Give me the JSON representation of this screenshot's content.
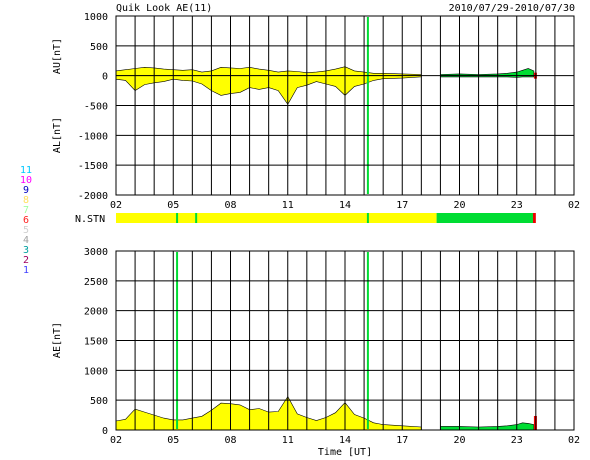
{
  "header": {
    "title": "Quik Look AE(11)",
    "date_range": "2010/07/29-2010/07/30"
  },
  "legend": {
    "items": [
      {
        "label": "11",
        "color": "#00c8ff"
      },
      {
        "label": "10",
        "color": "#ff00ff"
      },
      {
        "label": "9",
        "color": "#0000c0"
      },
      {
        "label": "8",
        "color": "#ffe060"
      },
      {
        "label": "7",
        "color": "#a0ffa0"
      },
      {
        "label": "6",
        "color": "#ff2020"
      },
      {
        "label": "5",
        "color": "#d0d0d0"
      },
      {
        "label": "4",
        "color": "#a0a0a0"
      },
      {
        "label": "3",
        "color": "#00a0a0"
      },
      {
        "label": "2",
        "color": "#a00060"
      },
      {
        "label": "1",
        "color": "#4040ff"
      }
    ]
  },
  "colors": {
    "fill_main": "#ffff00",
    "fill_late": "#00dd33",
    "marker_end": "#ee0000",
    "grid": "#000000"
  },
  "chart_data": [
    {
      "id": "au_al",
      "type": "area",
      "ylabel_top": "AU[nT]",
      "ylabel_bottom": "AL[nT]",
      "ylim": [
        -2000,
        1000
      ],
      "yticks": [
        1000,
        500,
        0,
        -500,
        -1000,
        -1500,
        -2000
      ],
      "x_tick_labels": [
        "02",
        "05",
        "08",
        "11",
        "14",
        "17",
        "20",
        "23",
        "02"
      ],
      "xlim_hours": [
        2,
        26
      ],
      "grid": true,
      "series": [
        {
          "hour": [
            2.0,
            2.5,
            3.0,
            3.5,
            4.0,
            4.5,
            5.0,
            5.5,
            6.0,
            6.5,
            7.0,
            7.5,
            8.0,
            8.5,
            9.0,
            9.5,
            10.0,
            10.5,
            11.0,
            11.5,
            12.0,
            12.5,
            13.0,
            13.5,
            14.0,
            14.5,
            15.0,
            15.5,
            16.0,
            17.0,
            18.0,
            19.0,
            20.0,
            21.0,
            22.0,
            22.5,
            23.0,
            23.3,
            23.6,
            23.9
          ],
          "au": [
            80,
            100,
            120,
            140,
            130,
            110,
            100,
            90,
            100,
            60,
            80,
            140,
            130,
            120,
            140,
            110,
            90,
            60,
            80,
            70,
            50,
            60,
            80,
            110,
            150,
            80,
            60,
            40,
            40,
            30,
            20,
            20,
            30,
            20,
            30,
            40,
            60,
            90,
            120,
            80
          ],
          "al": [
            -60,
            -80,
            -250,
            -150,
            -120,
            -100,
            -60,
            -80,
            -90,
            -140,
            -250,
            -330,
            -300,
            -280,
            -200,
            -230,
            -200,
            -250,
            -480,
            -200,
            -160,
            -100,
            -140,
            -180,
            -330,
            -180,
            -140,
            -80,
            -50,
            -40,
            -20,
            -20,
            -20,
            -20,
            -20,
            -20,
            -30,
            -20,
            -20,
            -20
          ]
        }
      ],
      "markers_hours": [
        15.2
      ],
      "late_start_hour": 18.8
    },
    {
      "id": "station_count",
      "type": "bar",
      "ylabel": "N.STN",
      "xlim_hours": [
        2,
        26
      ],
      "segments": [
        {
          "start": 2.0,
          "end": 18.8,
          "color": "yellow"
        },
        {
          "start": 18.8,
          "end": 23.85,
          "color": "green"
        },
        {
          "start": 23.85,
          "end": 24.0,
          "color": "red"
        }
      ],
      "marker_hours": [
        5.2,
        6.2,
        15.2
      ]
    },
    {
      "id": "ae",
      "type": "area",
      "ylabel": "AE[nT]",
      "xlabel": "Time [UT]",
      "ylim": [
        0,
        3000
      ],
      "yticks": [
        3000,
        2500,
        2000,
        1500,
        1000,
        500,
        0
      ],
      "x_tick_labels": [
        "02",
        "05",
        "08",
        "11",
        "14",
        "17",
        "20",
        "23",
        "02"
      ],
      "xlim_hours": [
        2,
        26
      ],
      "grid": true,
      "series": [
        {
          "hour": [
            2.0,
            2.5,
            3.0,
            3.5,
            4.0,
            4.5,
            5.0,
            5.5,
            6.0,
            6.5,
            7.0,
            7.5,
            8.0,
            8.5,
            9.0,
            9.5,
            10.0,
            10.5,
            11.0,
            11.5,
            12.0,
            12.5,
            13.0,
            13.5,
            14.0,
            14.5,
            15.0,
            15.5,
            16.0,
            17.0,
            18.0,
            19.0,
            20.0,
            21.0,
            22.0,
            22.5,
            23.0,
            23.3,
            23.6,
            23.9
          ],
          "ae": [
            150,
            180,
            350,
            300,
            250,
            200,
            170,
            170,
            200,
            230,
            330,
            450,
            440,
            420,
            340,
            360,
            300,
            310,
            560,
            270,
            210,
            160,
            210,
            290,
            460,
            260,
            200,
            120,
            90,
            70,
            50,
            60,
            60,
            50,
            60,
            70,
            90,
            120,
            110,
            90
          ]
        }
      ],
      "markers_hours": [
        5.2,
        15.2
      ],
      "late_start_hour": 18.8
    }
  ]
}
